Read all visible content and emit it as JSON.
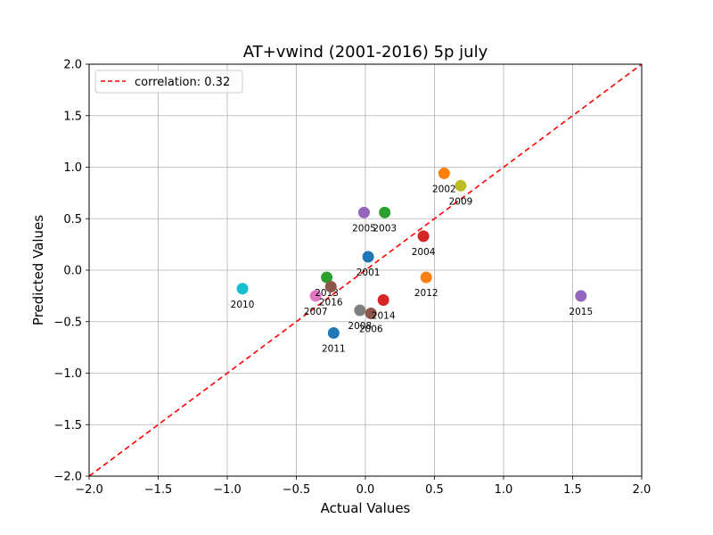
{
  "chart_data": {
    "type": "scatter",
    "title": "AT+vwind (2001-2016) 5p july",
    "xlabel": "Actual Values",
    "ylabel": "Predicted Values",
    "xlim": [
      -2.0,
      2.0
    ],
    "ylim": [
      -2.0,
      2.0
    ],
    "xticks": [
      -2.0,
      -1.5,
      -1.0,
      -0.5,
      0.0,
      0.5,
      1.0,
      1.5,
      2.0
    ],
    "yticks": [
      -2.0,
      -1.5,
      -1.0,
      -0.5,
      0.0,
      0.5,
      1.0,
      1.5,
      2.0
    ],
    "xtick_labels": [
      "−2.0",
      "−1.5",
      "−1.0",
      "−0.5",
      "0.0",
      "0.5",
      "1.0",
      "1.5",
      "2.0"
    ],
    "ytick_labels": [
      "−2.0",
      "−1.5",
      "−1.0",
      "−0.5",
      "0.0",
      "0.5",
      "1.0",
      "1.5",
      "2.0"
    ],
    "grid": true,
    "legend": {
      "placement": "top-left",
      "entries": [
        {
          "label": "correlation: 0.32",
          "style": "dashed",
          "color": "#ff0000"
        }
      ]
    },
    "reference_line": {
      "x": [
        -2.0,
        2.0
      ],
      "y": [
        -2.0,
        2.0
      ],
      "color": "#ff0000",
      "style": "dashed"
    },
    "points": [
      {
        "label": "2001",
        "x": 0.02,
        "y": 0.13,
        "color": "#1f77b4"
      },
      {
        "label": "2002",
        "x": 0.57,
        "y": 0.94,
        "color": "#ff7f0e"
      },
      {
        "label": "2003",
        "x": 0.14,
        "y": 0.56,
        "color": "#2ca02c"
      },
      {
        "label": "2004",
        "x": 0.42,
        "y": 0.33,
        "color": "#d62728"
      },
      {
        "label": "2005",
        "x": -0.01,
        "y": 0.56,
        "color": "#9467bd"
      },
      {
        "label": "2006",
        "x": 0.04,
        "y": -0.42,
        "color": "#8c564b"
      },
      {
        "label": "2007",
        "x": -0.36,
        "y": -0.25,
        "color": "#e377c2"
      },
      {
        "label": "2008",
        "x": -0.04,
        "y": -0.39,
        "color": "#7f7f7f"
      },
      {
        "label": "2009",
        "x": 0.69,
        "y": 0.82,
        "color": "#bcbd22"
      },
      {
        "label": "2010",
        "x": -0.89,
        "y": -0.18,
        "color": "#17becf"
      },
      {
        "label": "2011",
        "x": -0.23,
        "y": -0.61,
        "color": "#1f77b4"
      },
      {
        "label": "2012",
        "x": 0.44,
        "y": -0.07,
        "color": "#ff7f0e"
      },
      {
        "label": "2013",
        "x": -0.28,
        "y": -0.07,
        "color": "#2ca02c"
      },
      {
        "label": "2014",
        "x": 0.13,
        "y": -0.29,
        "color": "#d62728"
      },
      {
        "label": "2015",
        "x": 1.56,
        "y": -0.25,
        "color": "#9467bd"
      },
      {
        "label": "2016",
        "x": -0.25,
        "y": -0.16,
        "color": "#8c564b"
      }
    ]
  }
}
